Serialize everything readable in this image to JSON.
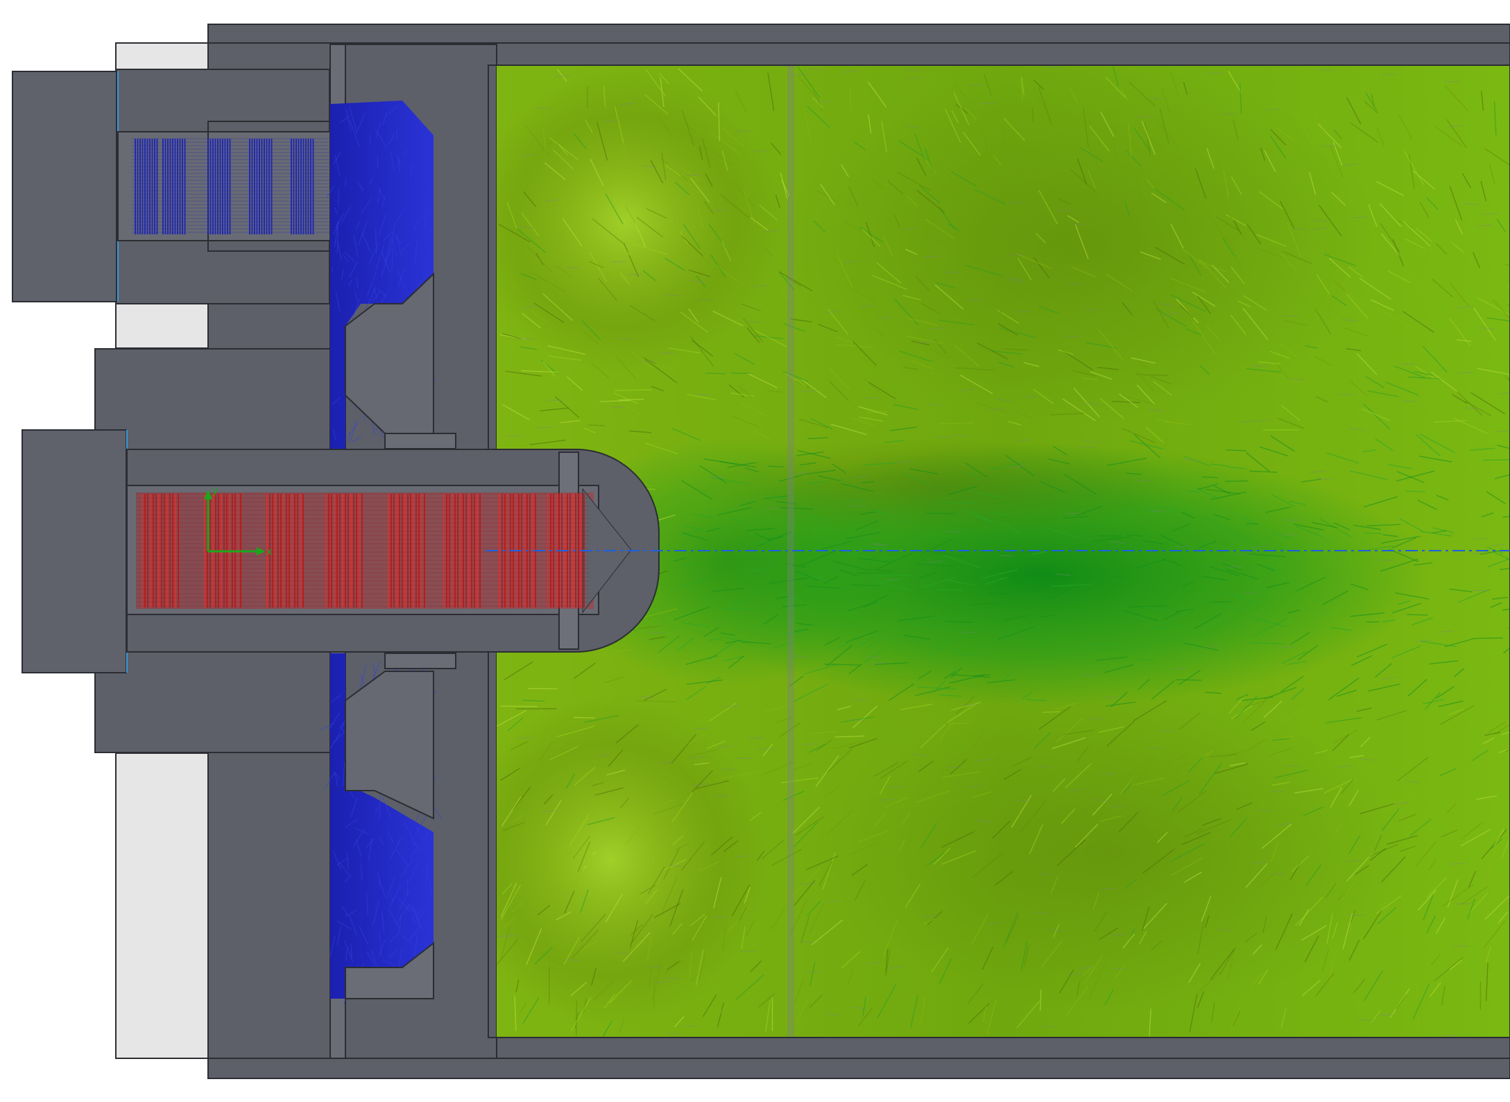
{
  "view": {
    "kind": "cfd-flow-trajectory-section",
    "background": "#ffffff"
  },
  "colors": {
    "solid_body": "#5d6069",
    "solid_edge": "#2b2d33",
    "light_margin": "#e6e6e6",
    "cold_inlet_flow": "#1a22b8",
    "hot_inlet_flow": "#c41616",
    "chamber_flow_light": "#86bf14",
    "chamber_flow_dark": "#0f8a12",
    "chamber_flow_olive": "#5a7a0a",
    "axis_line": "#1e5fe0",
    "triad_x": "#1aa81a",
    "triad_y": "#1aa81a"
  },
  "regions": [
    {
      "name": "cold-inlet-upper",
      "color_key": "cold_inlet_flow"
    },
    {
      "name": "cold-inlet-lower",
      "color_key": "cold_inlet_flow"
    },
    {
      "name": "hot-nozzle",
      "color_key": "hot_inlet_flow"
    },
    {
      "name": "mixing-chamber",
      "color_key": "chamber_flow_light"
    }
  ],
  "triad_labels": {
    "x": "x",
    "y": "y"
  }
}
